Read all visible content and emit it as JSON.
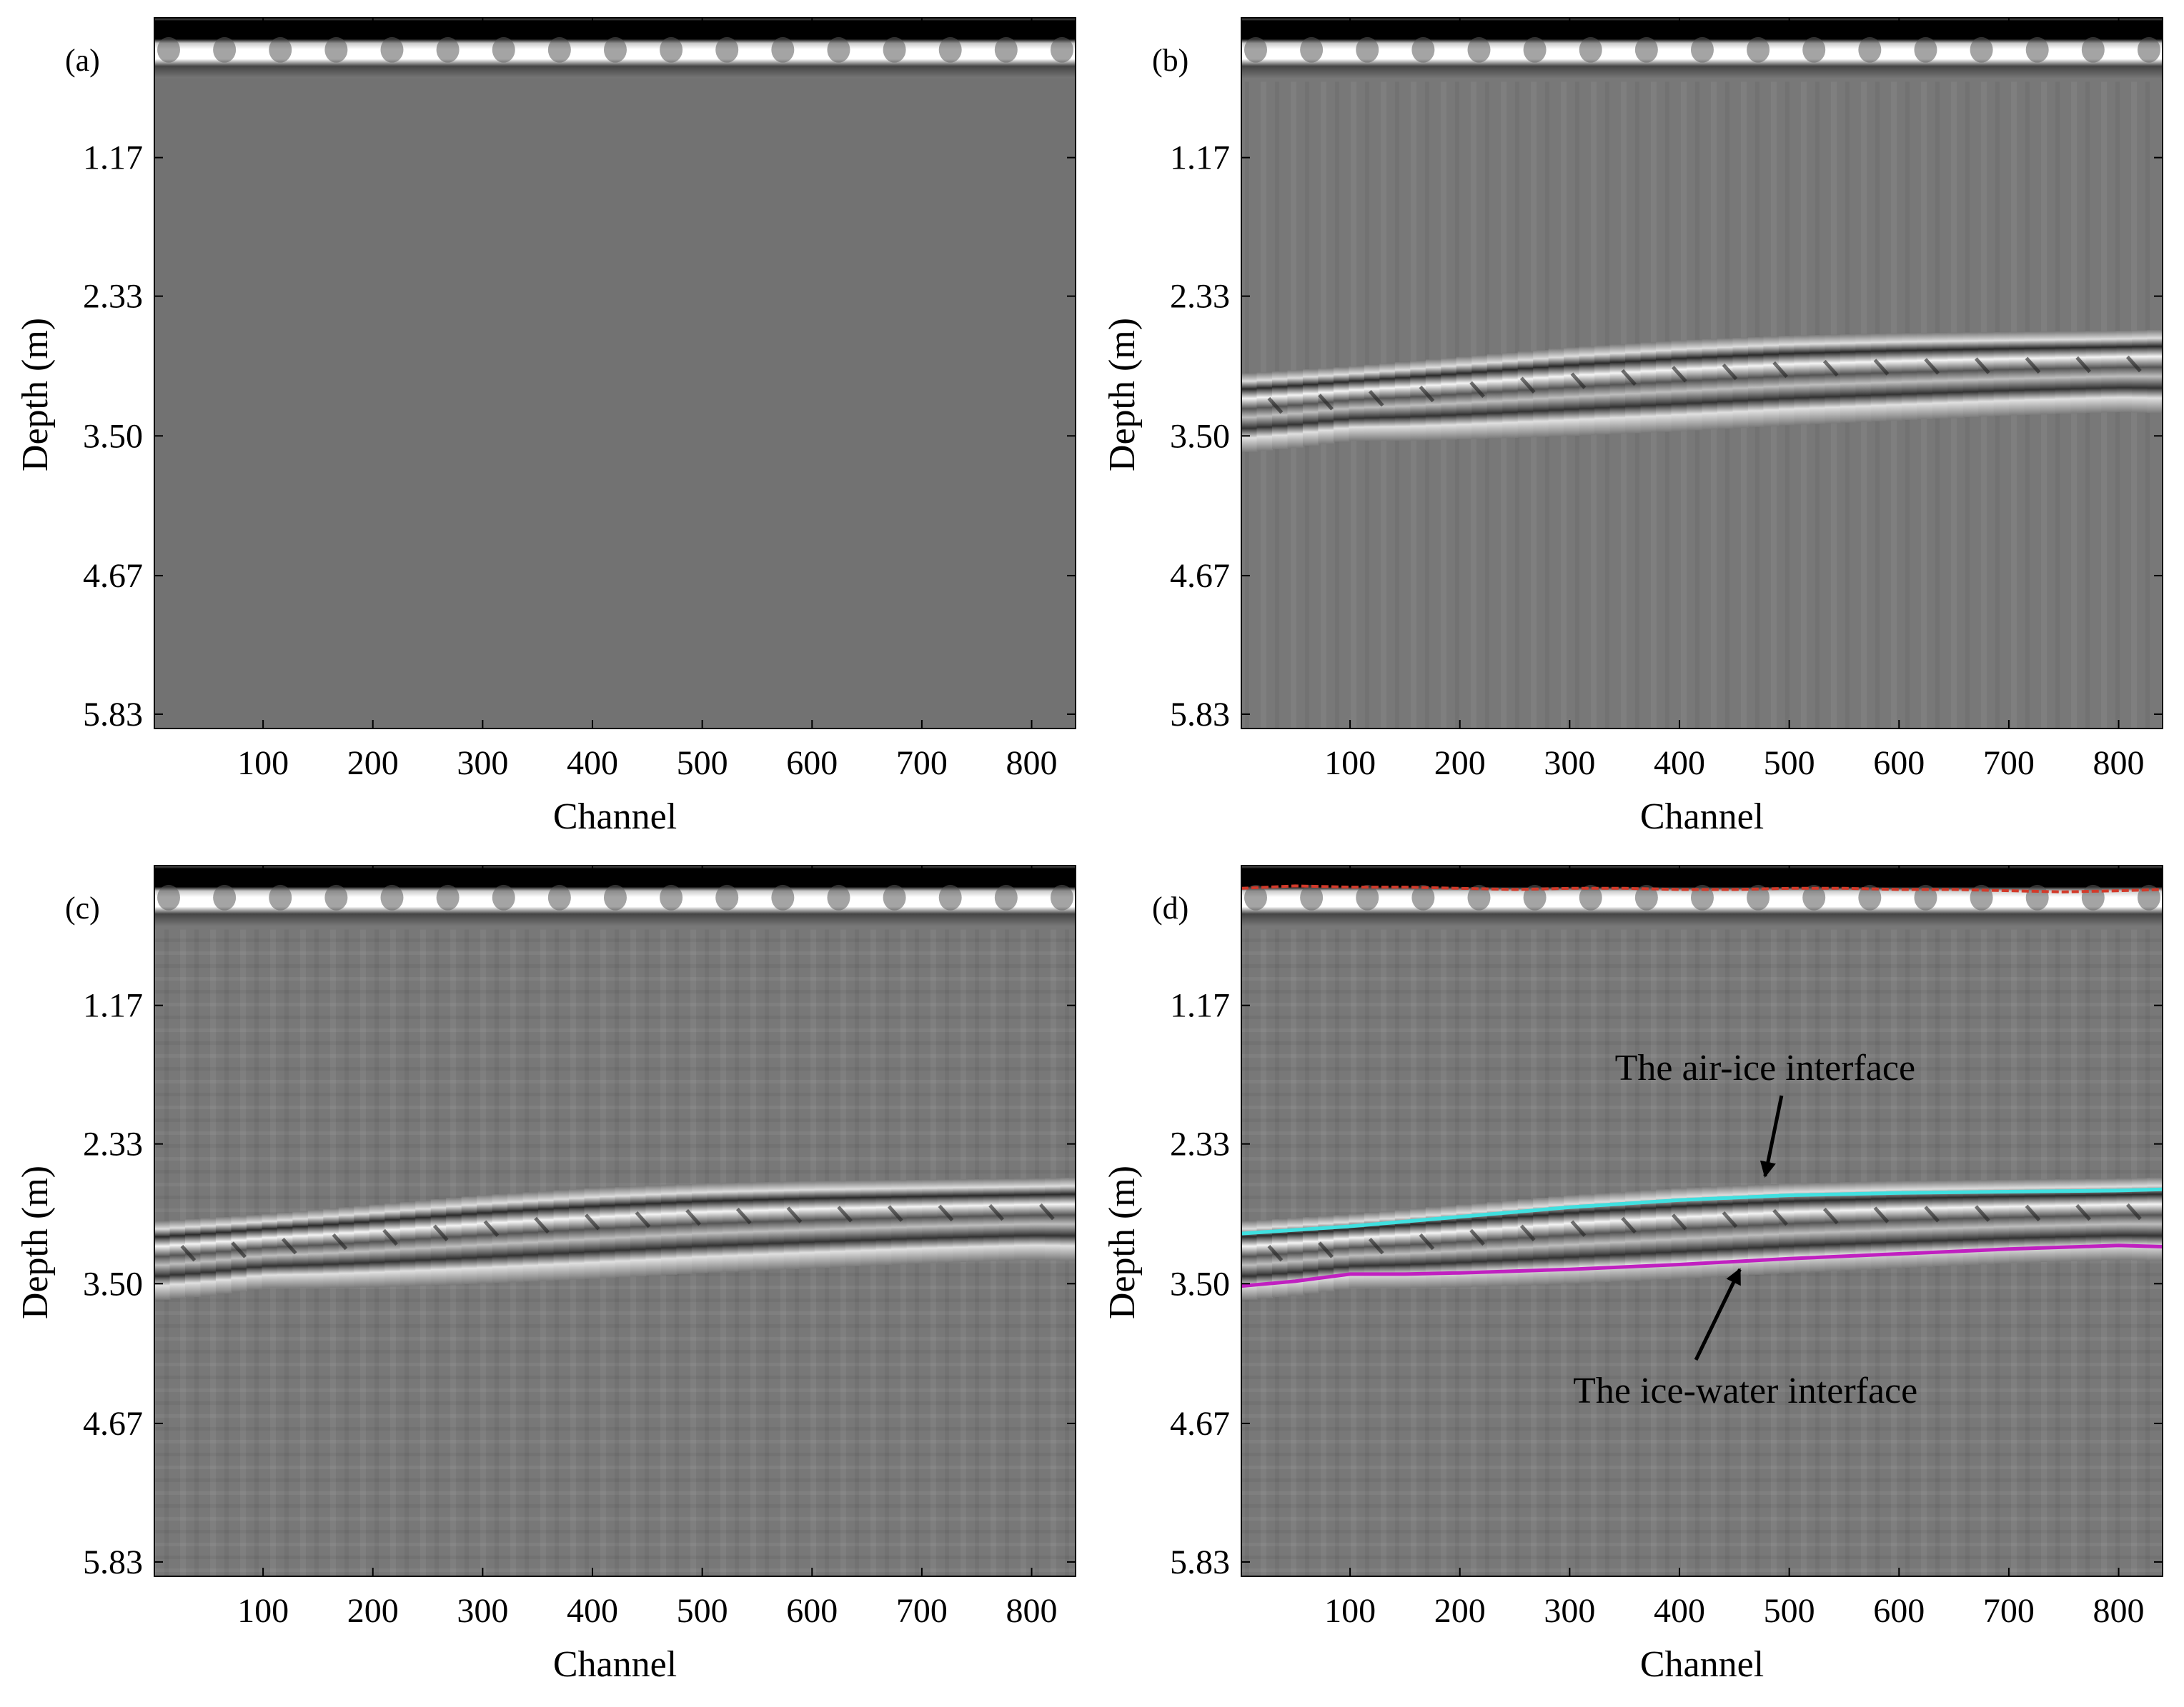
{
  "figure": {
    "type": "radargram-grid",
    "panels": [
      {
        "id": "a",
        "label": "(a)",
        "content": "raw",
        "annotations": []
      },
      {
        "id": "b",
        "label": "(b)",
        "content": "enhanced",
        "annotations": []
      },
      {
        "id": "c",
        "label": "(c)",
        "content": "enhanced-filtered",
        "annotations": []
      },
      {
        "id": "d",
        "label": "(d)",
        "content": "picked",
        "annotations": [
          {
            "id": "air-ice",
            "text": "The air-ice interface"
          },
          {
            "id": "ice-water",
            "text": "The ice-water interface"
          }
        ]
      }
    ]
  },
  "chart_data": {
    "type": "heatmap",
    "title": "",
    "xlabel": "Channel",
    "ylabel": "Depth (m)",
    "xlim": [
      1,
      840
    ],
    "ylim_reversed": [
      0,
      5.95
    ],
    "x_ticks": [
      100,
      200,
      300,
      400,
      500,
      600,
      700,
      800
    ],
    "x_tick_labels": [
      "100",
      "200",
      "300",
      "400",
      "500",
      "600",
      "700",
      "800"
    ],
    "y_ticks": [
      1.17,
      2.33,
      3.5,
      4.67,
      5.83
    ],
    "y_tick_labels": [
      "1.17",
      "2.33",
      "3.50",
      "4.67",
      "5.83"
    ],
    "colormap": "gray",
    "colors": {
      "surface_pick": "#d23a2a",
      "air_ice": "#40e0e0",
      "ice_water": "#c020c0"
    },
    "series": [
      {
        "name": "surface pick",
        "x": [
          1,
          50,
          100,
          150,
          200,
          250,
          300,
          350,
          400,
          450,
          500,
          550,
          600,
          650,
          700,
          750,
          800,
          840
        ],
        "y": [
          0.19,
          0.17,
          0.18,
          0.18,
          0.19,
          0.2,
          0.19,
          0.19,
          0.2,
          0.2,
          0.19,
          0.19,
          0.2,
          0.2,
          0.21,
          0.22,
          0.21,
          0.2
        ]
      },
      {
        "name": "The air-ice interface",
        "x": [
          1,
          100,
          200,
          300,
          400,
          500,
          600,
          700,
          800,
          840
        ],
        "y": [
          3.08,
          3.02,
          2.94,
          2.86,
          2.8,
          2.76,
          2.74,
          2.73,
          2.72,
          2.71
        ]
      },
      {
        "name": "The ice-water interface",
        "x": [
          1,
          50,
          100,
          150,
          200,
          300,
          400,
          500,
          600,
          700,
          800,
          840
        ],
        "y": [
          3.52,
          3.48,
          3.42,
          3.42,
          3.41,
          3.38,
          3.34,
          3.29,
          3.25,
          3.21,
          3.18,
          3.19
        ]
      }
    ]
  }
}
